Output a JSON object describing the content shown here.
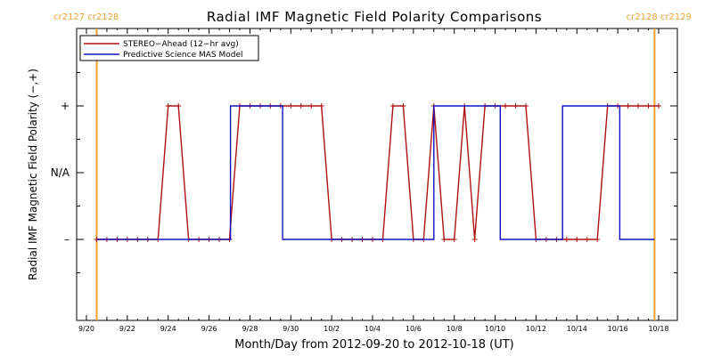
{
  "chart_data": {
    "type": "line",
    "title": "Radial IMF Magnetic Field Polarity Comparisons",
    "xlabel": "Month/Day from 2012-09-20 to 2012-10-18 (UT)",
    "ylabel": "Radial IMF Magnetic Field Polarity (−,+)",
    "x_ticks": [
      "9/20",
      "9/22",
      "9/24",
      "9/26",
      "9/28",
      "9/30",
      "10/2",
      "10/4",
      "10/6",
      "10/8",
      "10/10",
      "10/12",
      "10/14",
      "10/16",
      "10/18"
    ],
    "y_ticks": [
      "+",
      "N/A",
      "–"
    ],
    "xlim": [
      0,
      28
    ],
    "ylim": [
      -1.6,
      1.6
    ],
    "carrington_markers": [
      {
        "label": "cr2127 cr2128",
        "day": 0.5,
        "color": "#f0a030",
        "position": "top-left"
      },
      {
        "label": "cr2128 cr2129",
        "day": 27.8,
        "color": "#f0a030",
        "position": "top-right"
      }
    ],
    "legend_placement": "top-left",
    "series": [
      {
        "name": "STEREO−Ahead (12−hr avg)",
        "color": "#b01010",
        "marker": "plus",
        "x": [
          0.5,
          1.0,
          1.5,
          2.0,
          2.5,
          3.0,
          3.5,
          4.0,
          4.5,
          5.0,
          5.5,
          6.0,
          6.5,
          7.0,
          7.5,
          8.0,
          8.5,
          9.0,
          9.5,
          10.0,
          10.5,
          11.0,
          11.5,
          12.0,
          12.5,
          13.0,
          13.5,
          14.0,
          14.5,
          15.0,
          15.5,
          16.0,
          16.5,
          17.0,
          17.5,
          18.0,
          18.5,
          19.0,
          19.5,
          20.0,
          20.5,
          21.0,
          21.5,
          22.0,
          22.5,
          23.0,
          23.5,
          24.0,
          24.5,
          25.0,
          25.5,
          26.0,
          26.5,
          27.0,
          27.5,
          28.0
        ],
        "values": [
          -1,
          -1,
          -1,
          -1,
          -1,
          -1,
          -1,
          1,
          1,
          -1,
          -1,
          -1,
          -1,
          -1,
          1,
          1,
          1,
          1,
          1,
          1,
          1,
          1,
          1,
          -1,
          -1,
          -1,
          -1,
          -1,
          -1,
          1,
          1,
          -1,
          -1,
          1,
          -1,
          -1,
          1,
          -1,
          1,
          1,
          1,
          1,
          1,
          -1,
          -1,
          -1,
          -1,
          -1,
          -1,
          -1,
          1,
          1,
          1,
          1,
          1,
          1
        ]
      },
      {
        "name": "Predictive Science MAS Model",
        "color": "#1010c0",
        "marker": "none",
        "x": [
          0.5,
          7.05,
          7.05,
          9.6,
          9.6,
          17.0,
          17.0,
          20.25,
          20.25,
          23.3,
          23.3,
          26.1,
          26.1,
          27.8
        ],
        "values": [
          -1,
          -1,
          1,
          1,
          -1,
          -1,
          1,
          1,
          -1,
          -1,
          1,
          1,
          -1,
          -1
        ]
      }
    ]
  }
}
